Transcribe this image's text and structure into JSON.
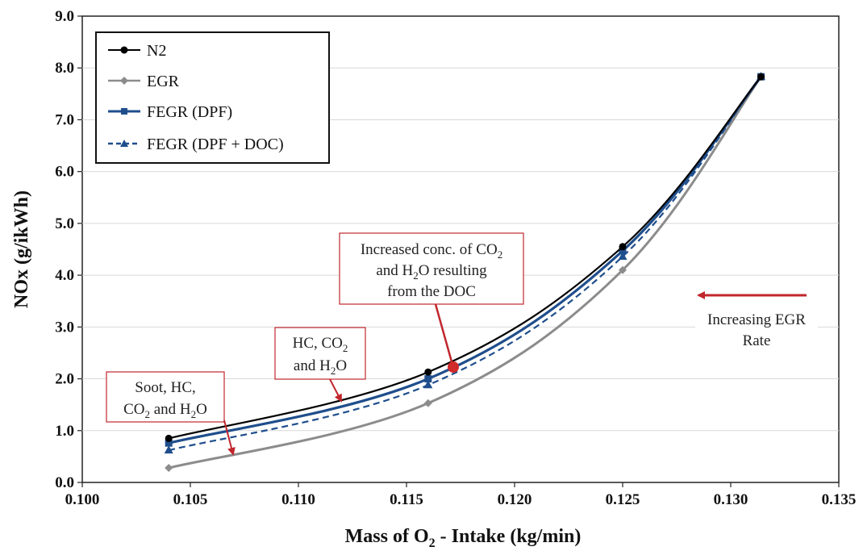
{
  "chart_data": {
    "type": "line",
    "xlabel": "Mass of O2 - Intake (kg/min)",
    "xlabel_main": "Mass of O",
    "xlabel_sub": "2",
    "xlabel_tail": " - Intake (kg/min)",
    "ylabel": "NOx (g/ikWh)",
    "xlim": [
      0.1,
      0.135
    ],
    "ylim": [
      0.0,
      9.0
    ],
    "x_ticks": [
      "0.100",
      "0.105",
      "0.110",
      "0.115",
      "0.120",
      "0.125",
      "0.130",
      "0.135"
    ],
    "y_ticks": [
      "0.0",
      "1.0",
      "2.0",
      "3.0",
      "4.0",
      "5.0",
      "6.0",
      "7.0",
      "8.0",
      "9.0"
    ],
    "grid": "horizontal",
    "legend_position": "top-left",
    "series": [
      {
        "name": "N2",
        "color": "#000000",
        "marker": "circle",
        "dash": "solid",
        "x": [
          0.104,
          0.116,
          0.125,
          0.1314
        ],
        "y": [
          0.85,
          2.13,
          4.55,
          7.83
        ]
      },
      {
        "name": "EGR",
        "color": "#8c8c8c",
        "marker": "diamond",
        "dash": "solid",
        "x": [
          0.104,
          0.116,
          0.125,
          0.1314
        ],
        "y": [
          0.28,
          1.53,
          4.1,
          7.83
        ]
      },
      {
        "name": "FEGR (DPF)",
        "color": "#1f4e8c",
        "marker": "square",
        "dash": "solid",
        "x": [
          0.104,
          0.116,
          0.125,
          0.1314
        ],
        "y": [
          0.76,
          2.0,
          4.47,
          7.83
        ]
      },
      {
        "name": "FEGR (DPF + DOC)",
        "color": "#1f4e8c",
        "marker": "triangle",
        "dash": "dashed",
        "x": [
          0.104,
          0.116,
          0.125,
          0.1314
        ],
        "y": [
          0.62,
          1.88,
          4.36,
          7.83
        ]
      }
    ],
    "annotations": [
      {
        "lines": [
          "Soot, HC,",
          "CO2 and H2O"
        ]
      },
      {
        "lines": [
          "HC, CO2",
          "and H2O"
        ]
      },
      {
        "lines": [
          "Increased conc. of CO2",
          "and H2O resulting",
          "from the DOC"
        ]
      },
      {
        "lines": [
          "Increasing EGR",
          "Rate"
        ]
      }
    ],
    "accent_color": "#c0272d"
  }
}
